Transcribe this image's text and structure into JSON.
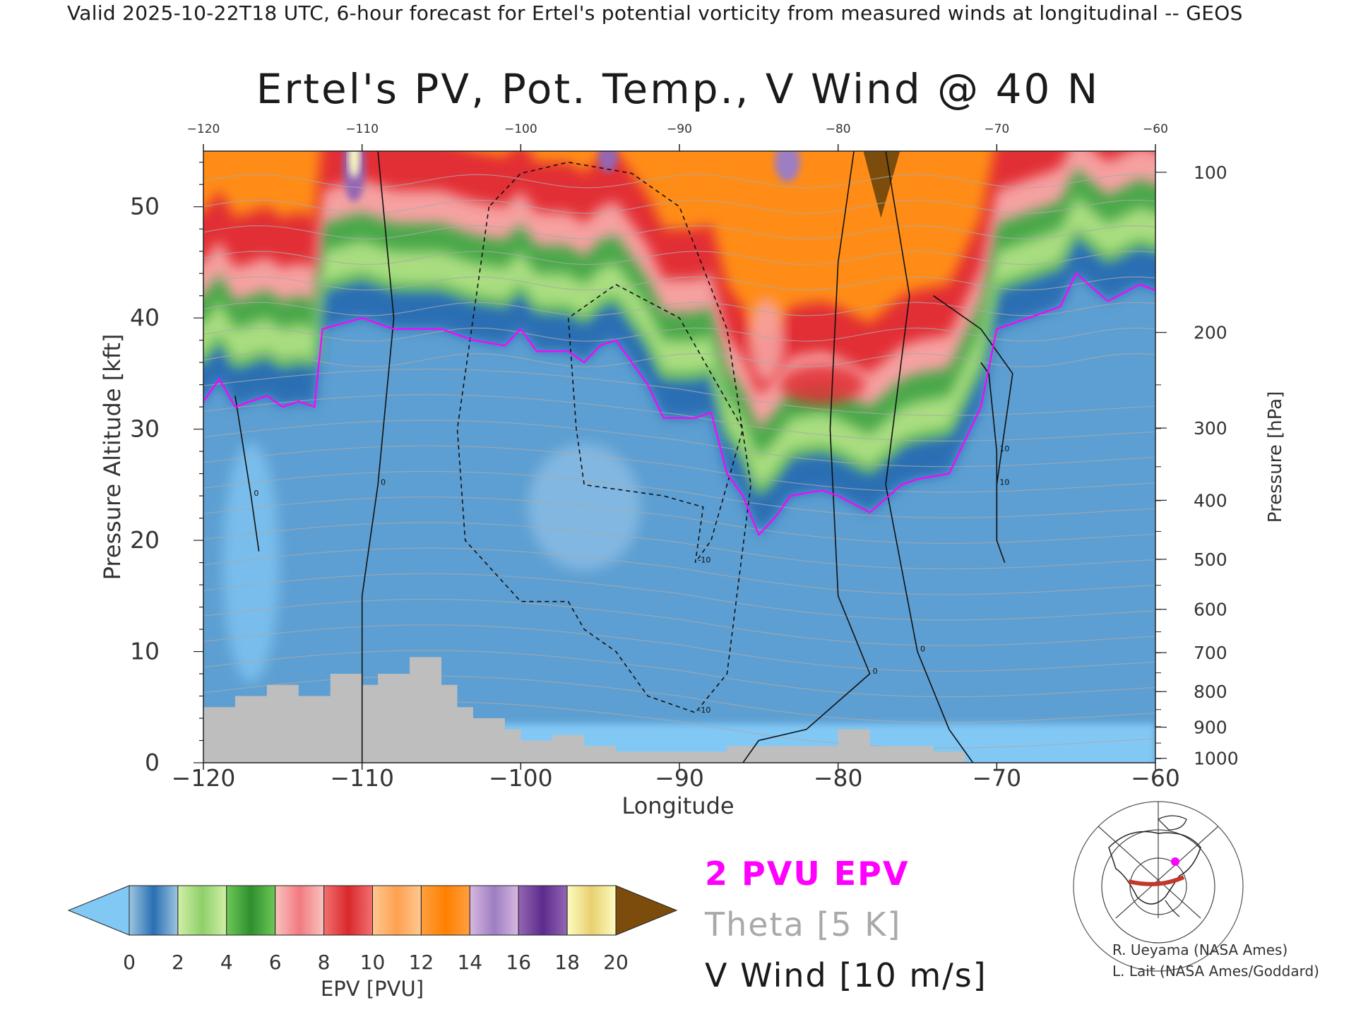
{
  "header": "Valid 2025-10-22T18 UTC, 6-hour forecast for Ertel's potential vorticity from measured winds at longitudinal -- GEOS",
  "chart_data": {
    "type": "heatmap",
    "title": "Ertel's PV, Pot. Temp., V Wind @ 40 N",
    "xlabel": "Longitude",
    "ylabel": "Pressure Altitude [kft]",
    "y2label": "Pressure [hPa]",
    "xlim": [
      -120,
      -60
    ],
    "ylim": [
      0,
      55
    ],
    "x_ticks": [
      -120,
      -110,
      -100,
      -90,
      -80,
      -70,
      -60
    ],
    "y_ticks": [
      0,
      10,
      20,
      30,
      40,
      50
    ],
    "y2_ticks": [
      {
        "hPa": 100,
        "kft": 53.1
      },
      {
        "hPa": 200,
        "kft": 38.7
      },
      {
        "hPa": 300,
        "kft": 30.1
      },
      {
        "hPa": 400,
        "kft": 23.6
      },
      {
        "hPa": 500,
        "kft": 18.3
      },
      {
        "hPa": 600,
        "kft": 13.8
      },
      {
        "hPa": 700,
        "kft": 9.9
      },
      {
        "hPa": 800,
        "kft": 6.4
      },
      {
        "hPa": 900,
        "kft": 3.2
      },
      {
        "hPa": 1000,
        "kft": 0.4
      }
    ],
    "tropopause_2pvu_kft": [
      [
        -120,
        32.5
      ],
      [
        -119,
        34.5
      ],
      [
        -118,
        32
      ],
      [
        -116,
        33
      ],
      [
        -115,
        32
      ],
      [
        -114,
        32.5
      ],
      [
        -113,
        32
      ],
      [
        -112.5,
        39
      ],
      [
        -110,
        40
      ],
      [
        -108,
        39
      ],
      [
        -105,
        39
      ],
      [
        -103,
        38
      ],
      [
        -101,
        37.5
      ],
      [
        -100,
        39
      ],
      [
        -99,
        37
      ],
      [
        -97,
        37
      ],
      [
        -96,
        36
      ],
      [
        -95,
        37.5
      ],
      [
        -94,
        38
      ],
      [
        -92,
        34
      ],
      [
        -91,
        31
      ],
      [
        -89,
        31
      ],
      [
        -88,
        31.5
      ],
      [
        -87,
        26
      ],
      [
        -86,
        24
      ],
      [
        -85,
        20.5
      ],
      [
        -84,
        22
      ],
      [
        -83,
        24
      ],
      [
        -81,
        24.5
      ],
      [
        -80,
        24
      ],
      [
        -78,
        22.5
      ],
      [
        -76,
        25
      ],
      [
        -75,
        25.5
      ],
      [
        -73,
        26
      ],
      [
        -71,
        32
      ],
      [
        -70,
        39
      ],
      [
        -68,
        40
      ],
      [
        -66,
        41
      ],
      [
        -65,
        44
      ],
      [
        -63,
        41.5
      ],
      [
        -61,
        43
      ],
      [
        -60,
        42.5
      ]
    ],
    "terrain_kft": [
      [
        -120,
        5
      ],
      [
        -118,
        6
      ],
      [
        -116,
        7
      ],
      [
        -114,
        6
      ],
      [
        -112,
        8
      ],
      [
        -110,
        7
      ],
      [
        -109,
        8
      ],
      [
        -107,
        9.5
      ],
      [
        -105,
        7
      ],
      [
        -104,
        5
      ],
      [
        -103,
        4
      ],
      [
        -101,
        3
      ],
      [
        -100,
        2
      ],
      [
        -98,
        2.5
      ],
      [
        -96,
        1.5
      ],
      [
        -94,
        1
      ],
      [
        -88,
        1
      ],
      [
        -87,
        1.5
      ],
      [
        -82,
        1.5
      ],
      [
        -80,
        3
      ],
      [
        -78,
        1.5
      ],
      [
        -74,
        1
      ],
      [
        -72,
        0
      ]
    ],
    "vwind_contours": [
      {
        "label": "-10",
        "dashed": true,
        "points": [
          [
            -102,
            50
          ],
          [
            -104,
            30
          ],
          [
            -103.5,
            20
          ],
          [
            -100,
            14.5
          ],
          [
            -97,
            14.5
          ],
          [
            -96,
            12
          ],
          [
            -94,
            10
          ],
          [
            -92,
            6
          ],
          [
            -89,
            4.5
          ],
          [
            -87,
            8
          ],
          [
            -85.5,
            25
          ],
          [
            -87,
            39
          ],
          [
            -90,
            50
          ],
          [
            -93,
            53
          ],
          [
            -97,
            54
          ],
          [
            -100,
            53
          ],
          [
            -102,
            50
          ]
        ]
      },
      {
        "label": "-10",
        "dashed": true,
        "points": [
          [
            -97,
            40
          ],
          [
            -96.5,
            30
          ],
          [
            -96,
            25
          ],
          [
            -91,
            24
          ],
          [
            -88.5,
            23
          ],
          [
            -89,
            18
          ],
          [
            -88,
            20
          ],
          [
            -86,
            30
          ],
          [
            -90,
            40
          ],
          [
            -94,
            43
          ],
          [
            -97,
            40
          ]
        ]
      },
      {
        "label": "0",
        "dashed": false,
        "points": [
          [
            -118,
            33
          ],
          [
            -117,
            24
          ],
          [
            -116.5,
            19
          ]
        ]
      },
      {
        "label": "0",
        "dashed": false,
        "points": [
          [
            -109,
            55
          ],
          [
            -108,
            40
          ],
          [
            -109,
            25
          ],
          [
            -110,
            15
          ],
          [
            -110,
            0
          ]
        ]
      },
      {
        "label": "0",
        "dashed": false,
        "points": [
          [
            -79,
            55
          ],
          [
            -80,
            45
          ],
          [
            -80.5,
            30
          ],
          [
            -80,
            15
          ],
          [
            -78,
            8
          ],
          [
            -82,
            3
          ],
          [
            -85,
            2
          ],
          [
            -86,
            0
          ]
        ]
      },
      {
        "label": "0",
        "dashed": false,
        "points": [
          [
            -77,
            55
          ],
          [
            -75.5,
            42
          ],
          [
            -77,
            25
          ],
          [
            -75,
            10
          ],
          [
            -73,
            3
          ],
          [
            -71.5,
            0
          ]
        ]
      },
      {
        "label": "10",
        "dashed": false,
        "points": [
          [
            -74,
            42
          ],
          [
            -71,
            39
          ],
          [
            -69,
            35
          ],
          [
            -70,
            25
          ],
          [
            -70,
            20
          ],
          [
            -69.5,
            18
          ]
        ]
      },
      {
        "label": "10",
        "dashed": false,
        "points": [
          [
            -71,
            36
          ],
          [
            -70.5,
            35
          ],
          [
            -70,
            28
          ],
          [
            -70,
            20
          ]
        ]
      }
    ],
    "colorbar": {
      "label": "EPV [PVU]",
      "min": 0,
      "max": 20,
      "step": 2,
      "ticks": [
        0,
        2,
        4,
        6,
        8,
        10,
        12,
        14,
        16,
        18,
        20
      ],
      "bins": [
        {
          "from": 0,
          "to": 2,
          "light": "#9cc6e0",
          "dark": "#2a6eb4"
        },
        {
          "from": 2,
          "to": 4,
          "light": "#d2eea8",
          "dark": "#8ed06a"
        },
        {
          "from": 4,
          "to": 6,
          "light": "#6ec857",
          "dark": "#2e8f2e"
        },
        {
          "from": 6,
          "to": 8,
          "light": "#f9c3be",
          "dark": "#f27a80"
        },
        {
          "from": 8,
          "to": 10,
          "light": "#f27070",
          "dark": "#d9282a"
        },
        {
          "from": 10,
          "to": 12,
          "light": "#ffc890",
          "dark": "#ffa050"
        },
        {
          "from": 12,
          "to": 14,
          "light": "#ffa040",
          "dark": "#ff8000"
        },
        {
          "from": 14,
          "to": 16,
          "light": "#d8b8e0",
          "dark": "#9d7ec2"
        },
        {
          "from": 16,
          "to": 18,
          "light": "#9466b4",
          "dark": "#5c2b8c"
        },
        {
          "from": 18,
          "to": 20,
          "light": "#fcfcc0",
          "dark": "#e8d070"
        }
      ],
      "under_color": "#82c8f5",
      "over_color": "#7b4c0c"
    },
    "fill_colors": {
      "sky_low": "#82c8f5",
      "trop_blue": "#5d9fd2",
      "strat_blue": "#2a6eb4",
      "green": "#4aa84a",
      "light_green": "#a9dd80",
      "pink": "#f6a1a1",
      "red": "#e22e34",
      "orange": "#ff8c19",
      "terrain": "#bebebe",
      "tropopause": "#ff00ff",
      "theta": "#a9a9a9"
    }
  },
  "legend": {
    "epv_label": "2 PVU EPV",
    "theta_label": "Theta [5 K]",
    "wind_label": "V Wind [10 m/s]"
  },
  "credits": {
    "line1": "R. Ueyama (NASA Ames)",
    "line2": "L. Lait (NASA Ames/Goddard)"
  },
  "inset_map": {
    "icon": "globe-map-icon",
    "track_color": "#c0392b",
    "marker_color": "#ff00ff"
  }
}
